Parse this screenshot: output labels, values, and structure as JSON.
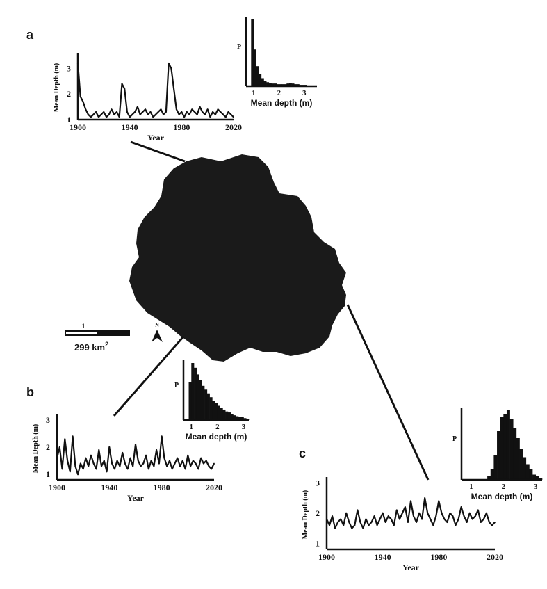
{
  "colors": {
    "ink": "#111111",
    "basin": "#1a1a1a",
    "background": "#ffffff",
    "frame": "#222222"
  },
  "map": {
    "area_label": "299 km",
    "area_superscript": "2",
    "scale_tick_label": "1",
    "north_label": "N",
    "north_icon": "north-arrow-icon"
  },
  "chart_data": [
    {
      "panel": "a",
      "type": "line",
      "ylabel": "Mean Depth (m)",
      "xlabel": "Year",
      "xticks": [
        1900,
        1940,
        1980,
        2020
      ],
      "yticks": [
        1,
        2,
        3
      ],
      "xlim": [
        1900,
        2020
      ],
      "ylim": [
        1,
        3.5
      ],
      "x": [
        1900,
        1902,
        1904,
        1906,
        1908,
        1910,
        1912,
        1914,
        1916,
        1918,
        1920,
        1922,
        1924,
        1926,
        1928,
        1930,
        1932,
        1934,
        1936,
        1938,
        1940,
        1942,
        1944,
        1946,
        1948,
        1950,
        1952,
        1954,
        1956,
        1958,
        1960,
        1962,
        1964,
        1966,
        1968,
        1970,
        1972,
        1974,
        1976,
        1978,
        1980,
        1982,
        1984,
        1986,
        1988,
        1990,
        1992,
        1994,
        1996,
        1998,
        2000,
        2002,
        2004,
        2006,
        2008,
        2010,
        2012,
        2014,
        2016,
        2018,
        2020
      ],
      "y": [
        3.2,
        1.9,
        1.7,
        1.4,
        1.2,
        1.1,
        1.2,
        1.3,
        1.1,
        1.2,
        1.3,
        1.1,
        1.2,
        1.4,
        1.2,
        1.3,
        1.1,
        2.4,
        2.2,
        1.3,
        1.1,
        1.2,
        1.3,
        1.5,
        1.2,
        1.3,
        1.4,
        1.2,
        1.3,
        1.1,
        1.2,
        1.3,
        1.4,
        1.2,
        1.3,
        3.2,
        3.0,
        2.2,
        1.4,
        1.2,
        1.3,
        1.1,
        1.3,
        1.2,
        1.4,
        1.3,
        1.2,
        1.5,
        1.3,
        1.2,
        1.4,
        1.1,
        1.3,
        1.2,
        1.4,
        1.3,
        1.2,
        1.1,
        1.3,
        1.2,
        1.1
      ],
      "histogram": {
        "ylabel": "P",
        "xlabel": "Mean depth (m)",
        "xticks": [
          1,
          2,
          3
        ],
        "xlim": [
          0.7,
          3.5
        ],
        "bin_width": 0.1,
        "bin_start": 0.7,
        "density": [
          0.0,
          0.0,
          1.0,
          0.55,
          0.3,
          0.18,
          0.12,
          0.08,
          0.06,
          0.05,
          0.04,
          0.04,
          0.03,
          0.03,
          0.03,
          0.03,
          0.04,
          0.05,
          0.04,
          0.03,
          0.03,
          0.02,
          0.02,
          0.02,
          0.01,
          0.01,
          0.01,
          0.0
        ]
      }
    },
    {
      "panel": "b",
      "type": "line",
      "ylabel": "Mean Depth (m)",
      "xlabel": "Year",
      "xticks": [
        1900,
        1940,
        1980,
        2020
      ],
      "yticks": [
        1,
        2,
        3
      ],
      "xlim": [
        1900,
        2020
      ],
      "ylim": [
        0.8,
        3.1
      ],
      "x": [
        1900,
        1902,
        1904,
        1906,
        1908,
        1910,
        1912,
        1914,
        1916,
        1918,
        1920,
        1922,
        1924,
        1926,
        1928,
        1930,
        1932,
        1934,
        1936,
        1938,
        1940,
        1942,
        1944,
        1946,
        1948,
        1950,
        1952,
        1954,
        1956,
        1958,
        1960,
        1962,
        1964,
        1966,
        1968,
        1970,
        1972,
        1974,
        1976,
        1978,
        1980,
        1982,
        1984,
        1986,
        1988,
        1990,
        1992,
        1994,
        1996,
        1998,
        2000,
        2002,
        2004,
        2006,
        2008,
        2010,
        2012,
        2014,
        2016,
        2018,
        2020
      ],
      "y": [
        1.6,
        2.0,
        1.2,
        2.3,
        1.5,
        1.1,
        2.4,
        1.3,
        1.0,
        1.4,
        1.2,
        1.6,
        1.3,
        1.7,
        1.4,
        1.2,
        1.9,
        1.3,
        1.5,
        1.1,
        2.0,
        1.4,
        1.2,
        1.5,
        1.3,
        1.8,
        1.4,
        1.2,
        1.6,
        1.3,
        2.1,
        1.5,
        1.3,
        1.4,
        1.7,
        1.2,
        1.5,
        1.3,
        1.9,
        1.4,
        2.4,
        1.6,
        1.3,
        1.5,
        1.2,
        1.4,
        1.6,
        1.3,
        1.5,
        1.2,
        1.7,
        1.3,
        1.5,
        1.4,
        1.2,
        1.6,
        1.4,
        1.5,
        1.3,
        1.2,
        1.4
      ],
      "histogram": {
        "ylabel": "P",
        "xlabel": "Mean depth (m)",
        "xticks": [
          1,
          2,
          3
        ],
        "xlim": [
          0.7,
          3.2
        ],
        "bin_width": 0.1,
        "bin_start": 0.7,
        "density": [
          0.0,
          0.0,
          0.4,
          0.6,
          0.55,
          0.48,
          0.42,
          0.36,
          0.32,
          0.28,
          0.24,
          0.2,
          0.18,
          0.15,
          0.13,
          0.11,
          0.09,
          0.08,
          0.06,
          0.05,
          0.04,
          0.03,
          0.03,
          0.02,
          0.01
        ]
      }
    },
    {
      "panel": "c",
      "type": "line",
      "ylabel": "Mean Depth (m)",
      "xlabel": "Year",
      "xticks": [
        1900,
        1940,
        1980,
        2020
      ],
      "yticks": [
        1,
        2,
        3
      ],
      "xlim": [
        1900,
        2020
      ],
      "ylim": [
        0.8,
        3.1
      ],
      "x": [
        1900,
        1902,
        1904,
        1906,
        1908,
        1910,
        1912,
        1914,
        1916,
        1918,
        1920,
        1922,
        1924,
        1926,
        1928,
        1930,
        1932,
        1934,
        1936,
        1938,
        1940,
        1942,
        1944,
        1946,
        1948,
        1950,
        1952,
        1954,
        1956,
        1958,
        1960,
        1962,
        1964,
        1966,
        1968,
        1970,
        1972,
        1974,
        1976,
        1978,
        1980,
        1982,
        1984,
        1986,
        1988,
        1990,
        1992,
        1994,
        1996,
        1998,
        2000,
        2002,
        2004,
        2006,
        2008,
        2010,
        2012,
        2014,
        2016,
        2018,
        2020
      ],
      "y": [
        1.8,
        1.6,
        1.9,
        1.5,
        1.7,
        1.8,
        1.6,
        2.0,
        1.7,
        1.5,
        1.6,
        2.1,
        1.7,
        1.5,
        1.8,
        1.6,
        1.7,
        1.9,
        1.6,
        1.8,
        2.0,
        1.7,
        1.9,
        1.8,
        1.6,
        2.1,
        1.8,
        2.0,
        2.2,
        1.7,
        2.4,
        1.9,
        1.7,
        2.0,
        1.8,
        2.5,
        2.0,
        1.8,
        1.6,
        1.9,
        2.4,
        2.0,
        1.8,
        1.7,
        2.0,
        1.9,
        1.6,
        1.8,
        2.2,
        1.9,
        1.7,
        2.0,
        1.8,
        1.9,
        2.1,
        1.7,
        1.8,
        2.0,
        1.7,
        1.6,
        1.7
      ],
      "histogram": {
        "ylabel": "P",
        "xlabel": "Mean depth (m)",
        "xticks": [
          1,
          2,
          3
        ],
        "xlim": [
          0.7,
          3.2
        ],
        "bin_width": 0.1,
        "bin_start": 0.7,
        "density": [
          0.0,
          0.0,
          0.0,
          0.0,
          0.0,
          0.0,
          0.0,
          0.0,
          0.02,
          0.06,
          0.14,
          0.28,
          0.36,
          0.38,
          0.4,
          0.35,
          0.3,
          0.24,
          0.18,
          0.13,
          0.09,
          0.06,
          0.03,
          0.02,
          0.01
        ]
      }
    }
  ]
}
